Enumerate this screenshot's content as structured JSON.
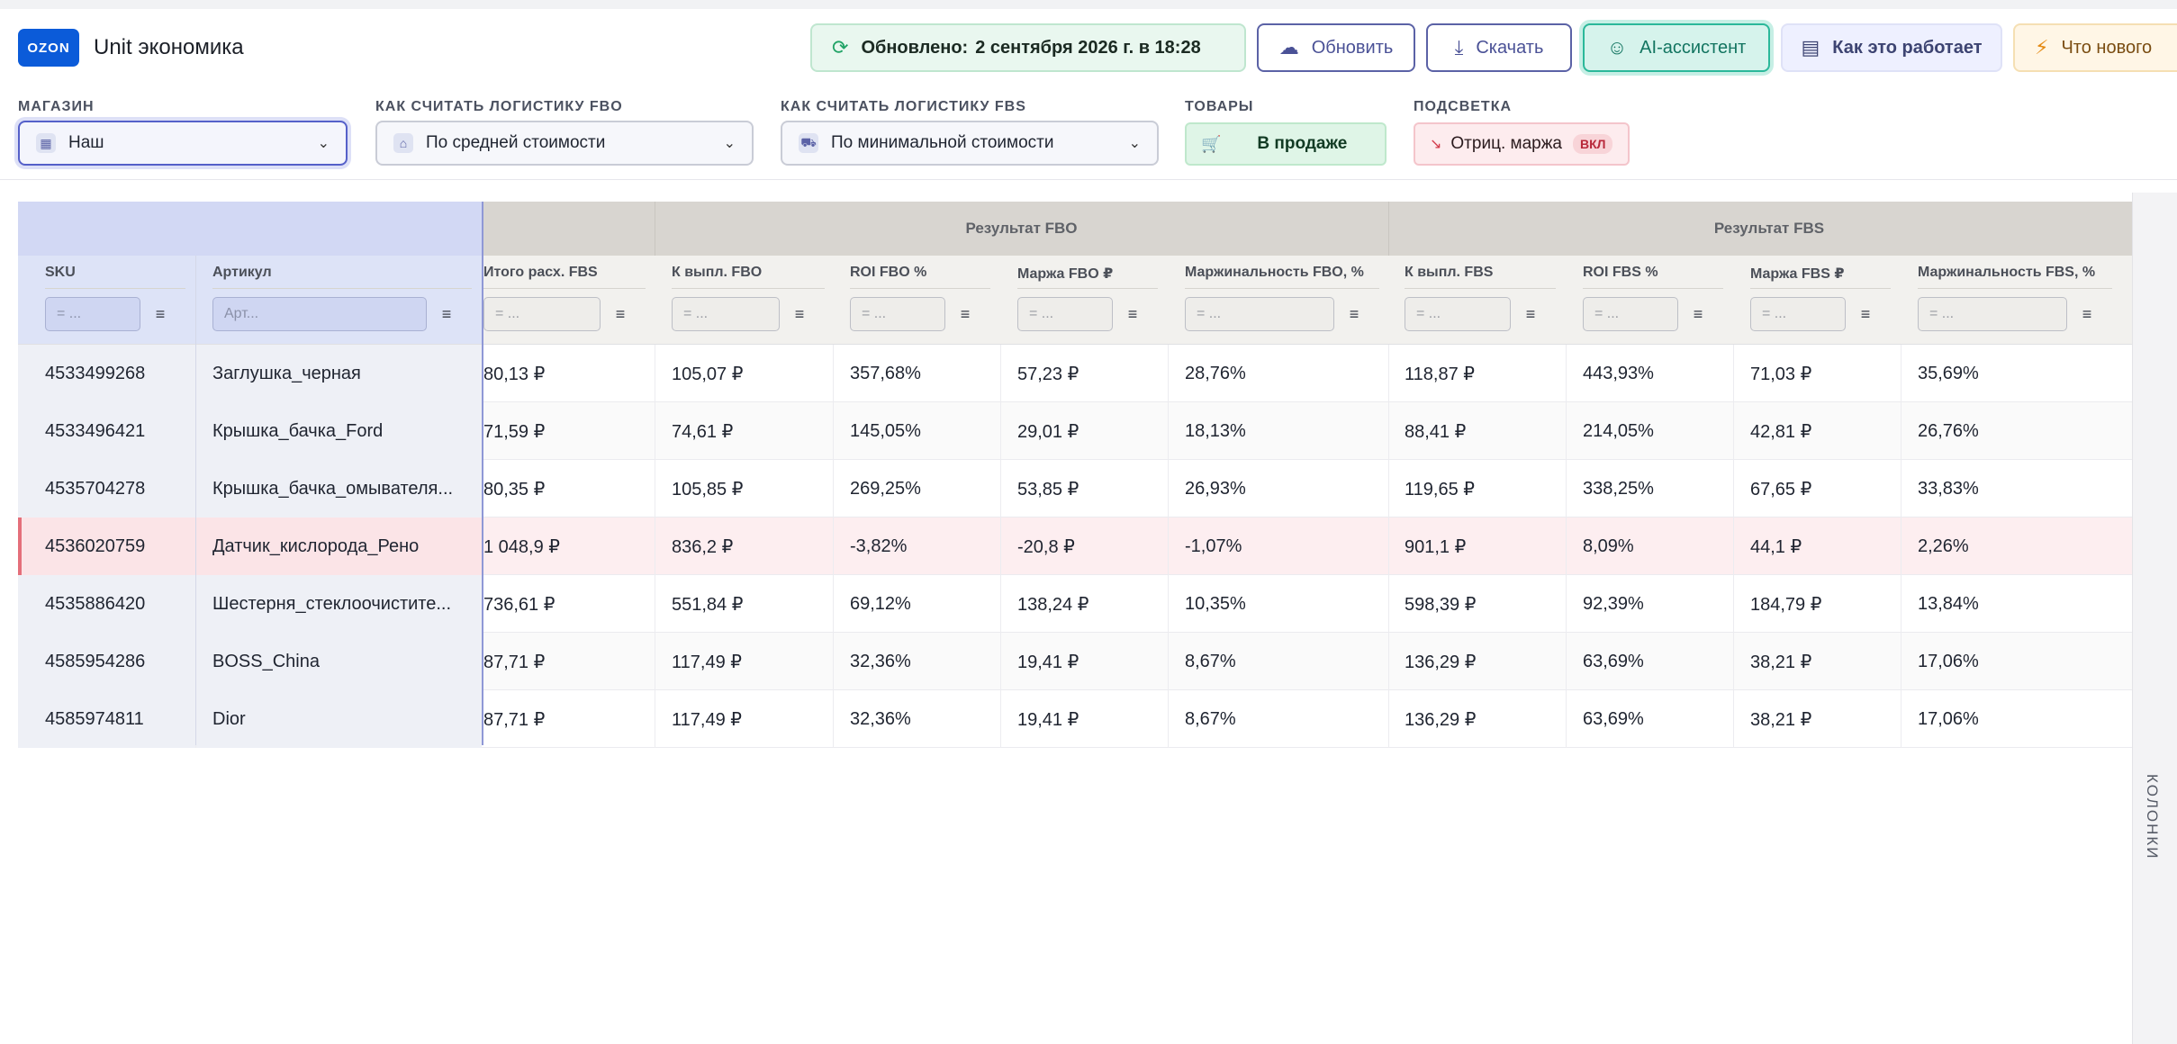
{
  "header": {
    "logo_text": "OZON",
    "title": "Unit экономика",
    "updated_label": "Обновлено:",
    "updated_value": "2 сентября 2026 г. в 18:28",
    "refresh_label": "Обновить",
    "download_label": "Скачать",
    "ai_label": "AI-ассистент",
    "how_label": "Как это работает",
    "news_label": "Что нового"
  },
  "filters": {
    "store_label": "МАГАЗИН",
    "store_value": "Наш",
    "fbo_label": "КАК СЧИТАТЬ ЛОГИСТИКУ FBO",
    "fbo_value": "По средней стоимости",
    "fbs_label": "КАК СЧИТАТЬ ЛОГИСТИКУ FBS",
    "fbs_value": "По минимальной стоимости",
    "goods_label": "ТОВАРЫ",
    "goods_value": "В продаже",
    "highlight_label": "ПОДСВЕТКА",
    "highlight_value": "Отриц. маржа",
    "highlight_badge": "ВКЛ"
  },
  "table": {
    "group_fbo": "Результат FBO",
    "group_fbs": "Результат FBS",
    "columns": [
      "SKU",
      "Артикул",
      "Итого расх. FBS",
      "К выпл. FBO",
      "ROI FBO %",
      "Маржа FBO ₽",
      "Маржинальность FBO, %",
      "К выпл. FBS",
      "ROI FBS %",
      "Маржа FBS ₽",
      "Маржинальность FBS, %"
    ],
    "filter_placeholder": "= ...",
    "artikul_placeholder": "Арт...",
    "rows": [
      [
        "4533499268",
        "Заглушка_черная",
        "80,13 ₽",
        "105,07 ₽",
        "357,68%",
        "57,23 ₽",
        "28,76%",
        "118,87 ₽",
        "443,93%",
        "71,03 ₽",
        "35,69%"
      ],
      [
        "4533496421",
        "Крышка_бачка_Ford",
        "71,59 ₽",
        "74,61 ₽",
        "145,05%",
        "29,01 ₽",
        "18,13%",
        "88,41 ₽",
        "214,05%",
        "42,81 ₽",
        "26,76%"
      ],
      [
        "4535704278",
        "Крышка_бачка_омывателя...",
        "80,35 ₽",
        "105,85 ₽",
        "269,25%",
        "53,85 ₽",
        "26,93%",
        "119,65 ₽",
        "338,25%",
        "67,65 ₽",
        "33,83%"
      ],
      [
        "4536020759",
        "Датчик_кислорода_Рено",
        "1 048,9 ₽",
        "836,2 ₽",
        "-3,82%",
        "-20,8 ₽",
        "-1,07%",
        "901,1 ₽",
        "8,09%",
        "44,1 ₽",
        "2,26%"
      ],
      [
        "4535886420",
        "Шестерня_стеклоочистите...",
        "736,61 ₽",
        "551,84 ₽",
        "69,12%",
        "138,24 ₽",
        "10,35%",
        "598,39 ₽",
        "92,39%",
        "184,79 ₽",
        "13,84%"
      ],
      [
        "4585954286",
        "BOSS_China",
        "87,71 ₽",
        "117,49 ₽",
        "32,36%",
        "19,41 ₽",
        "8,67%",
        "136,29 ₽",
        "63,69%",
        "38,21 ₽",
        "17,06%"
      ],
      [
        "4585974811",
        "Dior",
        "87,71 ₽",
        "117,49 ₽",
        "32,36%",
        "19,41 ₽",
        "8,67%",
        "136,29 ₽",
        "63,69%",
        "38,21 ₽",
        "17,06%"
      ]
    ]
  },
  "side_panel_label": "КОЛОНКИ"
}
